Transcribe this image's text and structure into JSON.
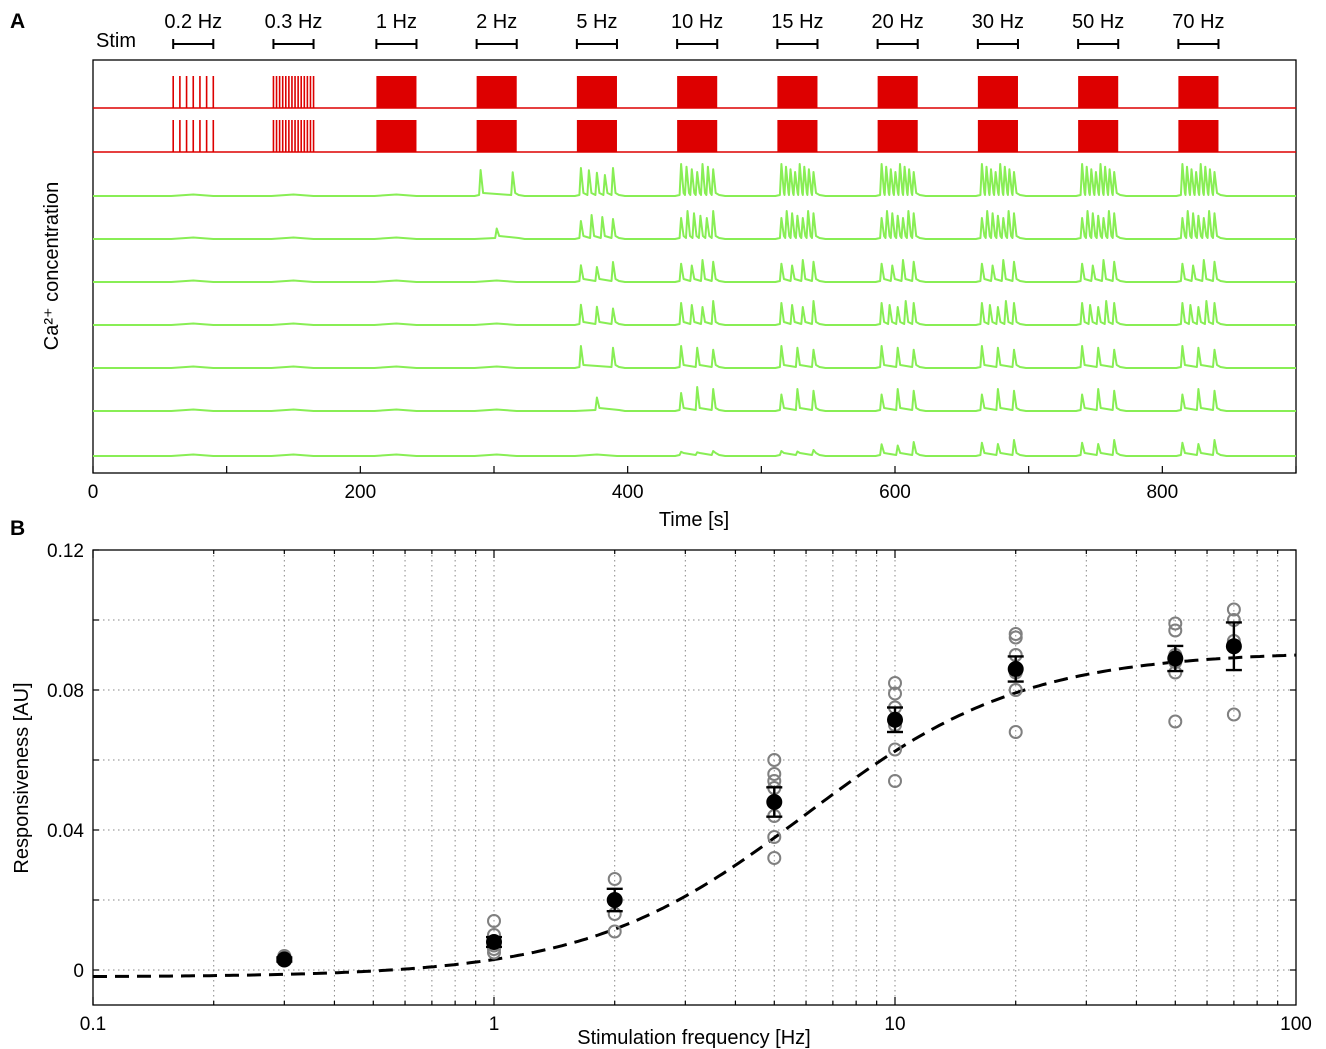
{
  "panel_labels": {
    "a": "A",
    "b": "B"
  },
  "chart_data": [
    {
      "type": "line",
      "panel": "A",
      "stim_label": "Stim",
      "stim_freqs": [
        "0.2 Hz",
        "0.3 Hz",
        "1 Hz",
        "2 Hz",
        "5 Hz",
        "10 Hz",
        "15 Hz",
        "20 Hz",
        "30 Hz",
        "50 Hz",
        "70 Hz"
      ],
      "stim_start_s": [
        60,
        135,
        212,
        287,
        362,
        437,
        512,
        587,
        662,
        737,
        812
      ],
      "stim_duration_s": 30,
      "xlabel": "Time [s]",
      "ylabel": "Ca²⁺ concentration",
      "xlim": [
        0,
        900
      ],
      "xticks": [
        0,
        200,
        400,
        600,
        800
      ],
      "stim_traces": 2,
      "calcium_traces": 7,
      "colors": {
        "stim": "#dd0000",
        "calcium": "#88ee55"
      }
    },
    {
      "type": "scatter",
      "panel": "B",
      "xlabel": "Stimulation frequency [Hz]",
      "ylabel": "Responsiveness [AU]",
      "xscale": "log",
      "xlim": [
        0.1,
        100
      ],
      "ylim": [
        -0.01,
        0.12
      ],
      "xticks": [
        0.1,
        1,
        10,
        100
      ],
      "xtick_labels": [
        "0.1",
        "1",
        "10",
        "100"
      ],
      "yticks": [
        0,
        0.04,
        0.08,
        0.12
      ],
      "ytick_labels": [
        "0",
        "0.04",
        "0.08",
        "0.12"
      ],
      "grid": true,
      "individual_points": [
        {
          "x": 0.3,
          "y": [
            0.004,
            0.003,
            0.0035
          ]
        },
        {
          "x": 1,
          "y": [
            0.014,
            0.01,
            0.008,
            0.006,
            0.005,
            0.007
          ]
        },
        {
          "x": 2,
          "y": [
            0.026,
            0.02,
            0.016,
            0.011
          ]
        },
        {
          "x": 5,
          "y": [
            0.06,
            0.056,
            0.054,
            0.052,
            0.044,
            0.038,
            0.032
          ]
        },
        {
          "x": 10,
          "y": [
            0.082,
            0.079,
            0.075,
            0.07,
            0.063,
            0.054
          ]
        },
        {
          "x": 20,
          "y": [
            0.096,
            0.095,
            0.09,
            0.085,
            0.08,
            0.068
          ]
        },
        {
          "x": 50,
          "y": [
            0.099,
            0.097,
            0.09,
            0.088,
            0.085,
            0.071
          ]
        },
        {
          "x": 70,
          "y": [
            0.103,
            0.1,
            0.094,
            0.073
          ]
        }
      ],
      "means": [
        {
          "x": 0.3,
          "y": 0.003,
          "err": 0.0006
        },
        {
          "x": 1,
          "y": 0.008,
          "err": 0.0014
        },
        {
          "x": 2,
          "y": 0.02,
          "err": 0.0032
        },
        {
          "x": 5,
          "y": 0.048,
          "err": 0.0042
        },
        {
          "x": 10,
          "y": 0.0715,
          "err": 0.0035
        },
        {
          "x": 20,
          "y": 0.086,
          "err": 0.0036
        },
        {
          "x": 50,
          "y": 0.089,
          "err": 0.0036
        },
        {
          "x": 70,
          "y": 0.0925,
          "err": 0.0068
        }
      ],
      "fit": {
        "style": "dashed",
        "model": "sigmoid",
        "max": 0.091,
        "ec50_hz": 6,
        "offset": -0.002
      },
      "colors": {
        "points": "#808080",
        "means": "#000000",
        "fit": "#000000"
      }
    }
  ]
}
